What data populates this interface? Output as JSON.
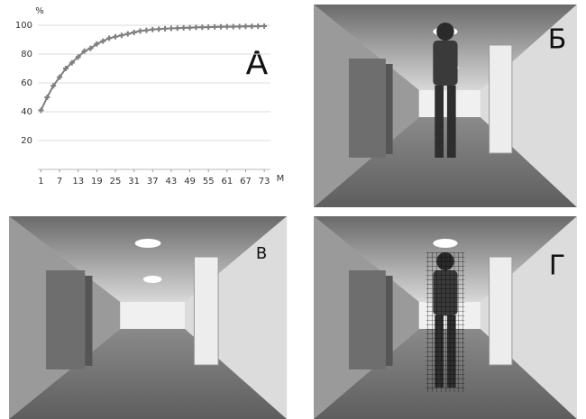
{
  "chart_data": {
    "type": "line",
    "y_label": "%",
    "x_label": "M",
    "x": [
      1,
      3,
      5,
      7,
      9,
      11,
      13,
      15,
      17,
      19,
      21,
      23,
      25,
      27,
      29,
      31,
      33,
      35,
      37,
      39,
      41,
      43,
      45,
      47,
      49,
      51,
      53,
      55,
      57,
      59,
      61,
      63,
      65,
      67,
      69,
      71,
      73
    ],
    "values": [
      41,
      50,
      58,
      64,
      70,
      74,
      78,
      82,
      84,
      87,
      89,
      91,
      92,
      93,
      94,
      95,
      96,
      96.5,
      97,
      97.3,
      97.6,
      97.8,
      98,
      98.2,
      98.3,
      98.5,
      98.6,
      98.7,
      98.8,
      98.9,
      99,
      99,
      99.1,
      99.2,
      99.2,
      99.3,
      99.4
    ],
    "color": "#7f7f7f",
    "xlim": [
      0,
      75
    ],
    "ylim": [
      0,
      100
    ],
    "xticks": [
      1,
      7,
      13,
      19,
      25,
      31,
      37,
      43,
      49,
      55,
      61,
      67,
      73
    ],
    "yticks": [
      20,
      40,
      60,
      80,
      100
    ],
    "grid": true
  },
  "panels": [
    {
      "label": "А"
    },
    {
      "label": "Б"
    },
    {
      "label": "В"
    },
    {
      "label": "Г"
    }
  ]
}
